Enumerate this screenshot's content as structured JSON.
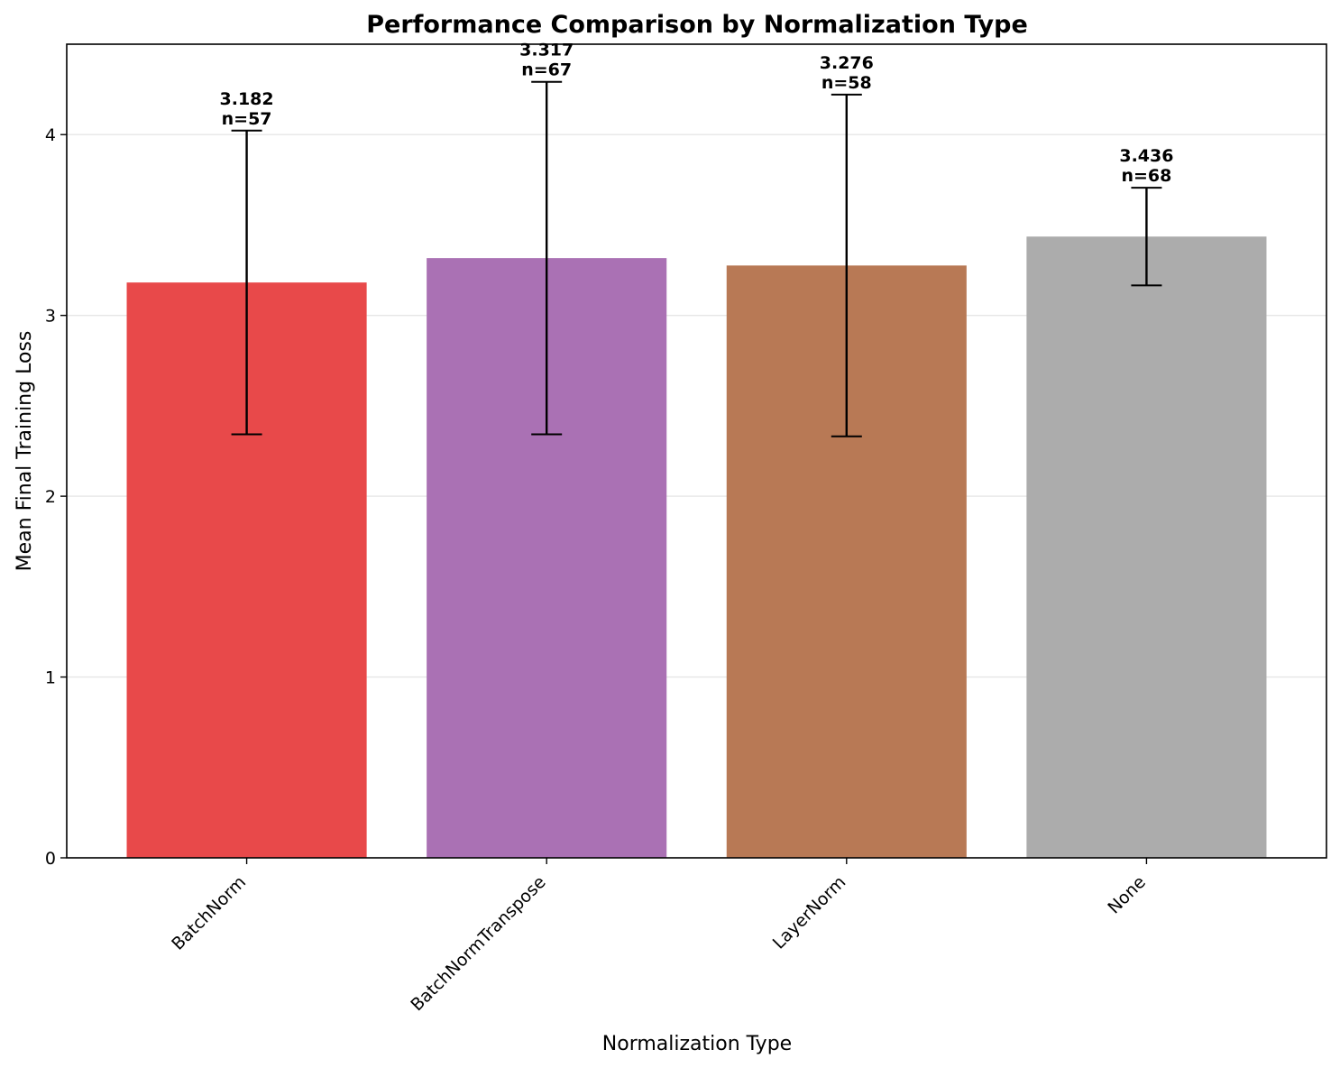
{
  "chart_data": {
    "type": "bar",
    "title": "Performance Comparison by Normalization Type",
    "xlabel": "Normalization Type",
    "ylabel": "Mean Final Training Loss",
    "ylim": [
      0,
      4.5
    ],
    "yticks": [
      0,
      1,
      2,
      3,
      4
    ],
    "grid": "y",
    "categories": [
      "BatchNorm",
      "BatchNormTranspose",
      "LayerNorm",
      "None"
    ],
    "values": [
      3.182,
      3.317,
      3.276,
      3.436
    ],
    "error": [
      0.84,
      0.975,
      0.945,
      0.27
    ],
    "counts": [
      "n=57",
      "n=67",
      "n=58",
      "n=68"
    ],
    "value_labels": [
      "3.182",
      "3.317",
      "3.276",
      "3.436"
    ],
    "colors": [
      "#e8494a",
      "#aa71b4",
      "#b87955",
      "#acacac"
    ]
  }
}
